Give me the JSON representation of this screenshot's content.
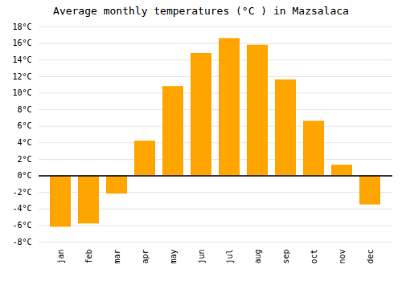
{
  "chart_data": {
    "type": "bar",
    "title": "Average monthly temperatures (°C ) in Mazsalaca",
    "categories": [
      "jan",
      "feb",
      "mar",
      "apr",
      "may",
      "jun",
      "jul",
      "aug",
      "sep",
      "oct",
      "nov",
      "dec"
    ],
    "values": [
      -6.2,
      -5.8,
      -2.2,
      4.2,
      10.8,
      14.8,
      16.6,
      15.8,
      11.6,
      6.6,
      1.3,
      -3.5
    ],
    "color": "#FFA500",
    "ylim": [
      -8,
      18
    ],
    "yticks": [
      {
        "value": -8,
        "label": "-8°C"
      },
      {
        "value": -6,
        "label": "-6°C"
      },
      {
        "value": -4,
        "label": "-4°C"
      },
      {
        "value": -2,
        "label": "-2°C"
      },
      {
        "value": 0,
        "label": "0°C"
      },
      {
        "value": 2,
        "label": "2°C"
      },
      {
        "value": 4,
        "label": "4°C"
      },
      {
        "value": 6,
        "label": "6°C"
      },
      {
        "value": 8,
        "label": "8°C"
      },
      {
        "value": 10,
        "label": "10°C"
      },
      {
        "value": 12,
        "label": "12°C"
      },
      {
        "value": 14,
        "label": "14°C"
      },
      {
        "value": 16,
        "label": "16°C"
      },
      {
        "value": 18,
        "label": "18°C"
      }
    ],
    "grid": true
  }
}
